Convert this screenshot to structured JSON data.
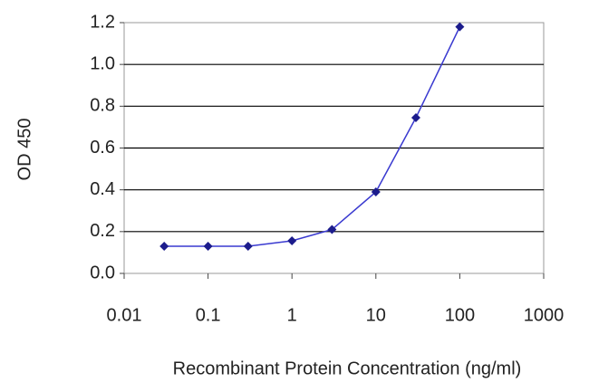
{
  "chart_data": {
    "type": "line",
    "x_label": "Recombinant Protein Concentration (ng/ml)",
    "y_label": "OD 450",
    "x": [
      0.03,
      0.1,
      0.3,
      1,
      3,
      10,
      30,
      100
    ],
    "series": [
      {
        "color": "#1c1c8c",
        "values": [
          0.13,
          0.13,
          0.13,
          0.156,
          0.21,
          0.39,
          0.745,
          1.18
        ]
      }
    ],
    "x_log": true,
    "xlim": [
      0.01,
      1000
    ],
    "xticks": [
      0.01,
      0.1,
      1,
      10,
      100,
      1000
    ],
    "ylim": [
      0,
      1.2
    ],
    "yticks": [
      {
        "value": 0,
        "label": "0.0"
      },
      0.2,
      0.4,
      0.6,
      0.8,
      {
        "value": 1,
        "label": "1.0"
      },
      1.2
    ],
    "grid": true
  }
}
